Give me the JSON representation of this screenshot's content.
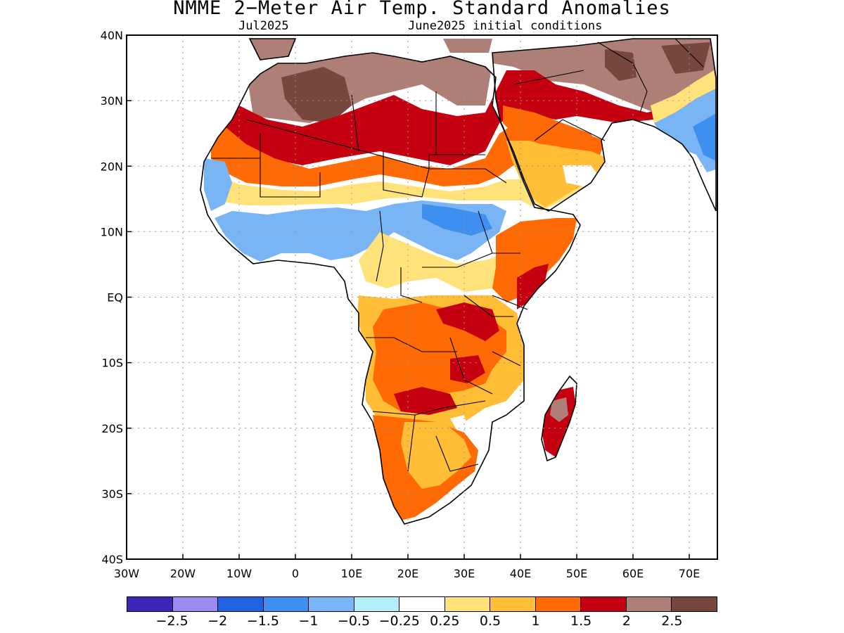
{
  "title": "NMME 2−Meter Air Temp. Standard Anomalies",
  "subtitle_left": "Jul2025",
  "subtitle_right": "June2025 initial conditions",
  "map": {
    "lon_range": [
      -30,
      75
    ],
    "lat_range": [
      -40,
      40
    ],
    "x_ticks": [
      "30W",
      "20W",
      "10W",
      "0",
      "10E",
      "20E",
      "30E",
      "40E",
      "50E",
      "60E",
      "70E"
    ],
    "y_ticks": [
      "40N",
      "30N",
      "20N",
      "10N",
      "EQ",
      "10S",
      "20S",
      "30S",
      "40S"
    ]
  },
  "legend": {
    "colors": [
      "#3b26b8",
      "#9b8af2",
      "#1f63e0",
      "#3d8ff0",
      "#79b5f5",
      "#b3eef8",
      "#ffffff",
      "#ffe27a",
      "#ffbe35",
      "#ff6a05",
      "#c50010",
      "#ae7f76",
      "#77463c"
    ],
    "labels": [
      "−2.5",
      "−2",
      "−1.5",
      "−1",
      "−0.5",
      "−0.25",
      "0.25",
      "0.5",
      "1",
      "1.5",
      "2",
      "2.5"
    ]
  },
  "anomaly_regions": [
    {
      "name": "sahara-north",
      "level": "2.5",
      "color": "#ae7f76"
    },
    {
      "name": "sahara-core",
      "level": "2.5+",
      "color": "#77463c"
    },
    {
      "name": "sahara-band",
      "level": "2",
      "color": "#c50010"
    },
    {
      "name": "sahel-orange",
      "level": "1.5",
      "color": "#ff6a05"
    },
    {
      "name": "west-africa",
      "level": "-0.5",
      "color": "#79b5f5"
    },
    {
      "name": "central-africa",
      "level": "1",
      "color": "#ffbe35"
    },
    {
      "name": "southern-africa",
      "level": "1.5",
      "color": "#ff6a05"
    },
    {
      "name": "east-africa",
      "level": "2",
      "color": "#c50010"
    },
    {
      "name": "arabia",
      "level": "1.5",
      "color": "#ff6a05"
    },
    {
      "name": "iran",
      "level": "2.5",
      "color": "#ae7f76"
    },
    {
      "name": "india",
      "level": "-0.5",
      "color": "#79b5f5"
    },
    {
      "name": "madagascar",
      "level": "2",
      "color": "#c50010"
    }
  ]
}
